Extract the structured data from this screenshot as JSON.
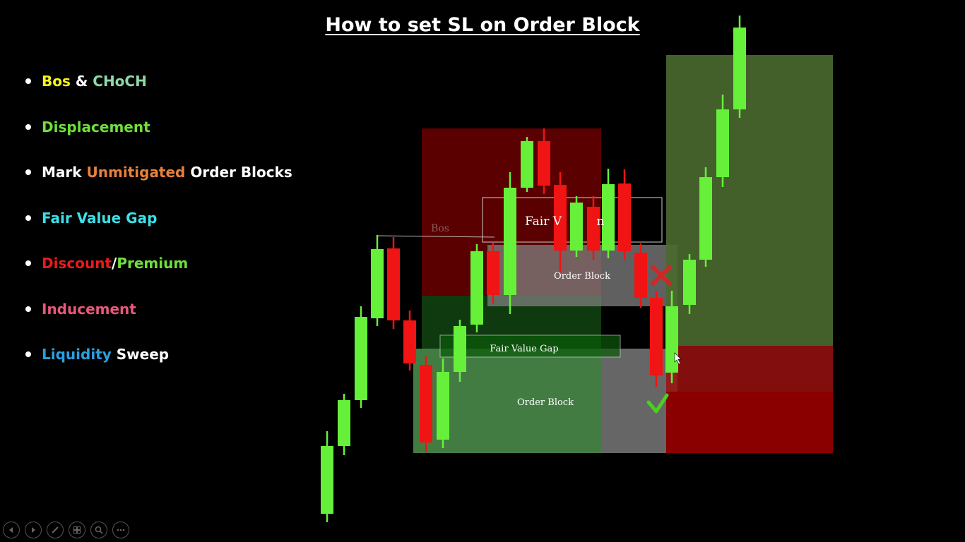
{
  "slide": {
    "title": "How to set SL on Order Block",
    "bullets": [
      {
        "parts": [
          {
            "text": "Bos",
            "color": "#f5f51c"
          },
          {
            "text": " & ",
            "color": "#ffffff"
          },
          {
            "text": "CHoCH",
            "color": "#8fd9a8"
          }
        ]
      },
      {
        "parts": [
          {
            "text": "Displacement",
            "color": "#6ee03a"
          }
        ]
      },
      {
        "parts": [
          {
            "text": "Mark ",
            "color": "#ffffff"
          },
          {
            "text": "Unmitigated",
            "color": "#e8803a"
          },
          {
            "text": " Order Blocks",
            "color": "#ffffff"
          }
        ]
      },
      {
        "parts": [
          {
            "text": "Fair Value Gap",
            "color": "#3ee0e8"
          }
        ]
      },
      {
        "parts": [
          {
            "text": "Discount",
            "color": "#e81c1c"
          },
          {
            "text": "/",
            "color": "#ffffff"
          },
          {
            "text": "Premium",
            "color": "#6ee03a"
          }
        ]
      },
      {
        "parts": [
          {
            "text": "Inducement",
            "color": "#e8587a"
          }
        ]
      },
      {
        "parts": [
          {
            "text": "Liquidity",
            "color": "#2aa0e0"
          },
          {
            "text": " Sweep",
            "color": "#ffffff"
          }
        ]
      }
    ]
  },
  "chart": {
    "labels": {
      "bos": "Bos",
      "fvg_upper": "Fair V",
      "fvg_upper_tail": "n",
      "order_block_upper": "Order Block",
      "fvg_lower": "Fair Value Gap",
      "order_block_lower": "Order Block"
    },
    "marks": {
      "invalid": "x-mark-icon",
      "valid": "check-mark-icon"
    },
    "colors": {
      "bull": "#66f03a",
      "bear": "#f01414",
      "premium_zone": "#5a0000",
      "discount_zone": "#0f3a0f",
      "order_block_zone": "#808080",
      "target_zone": "#4a6a30",
      "stop_zone": "#9a1010"
    }
  },
  "controls": [
    "previous-icon",
    "next-icon",
    "pen-icon",
    "slides-icon",
    "zoom-icon",
    "more-icon"
  ]
}
